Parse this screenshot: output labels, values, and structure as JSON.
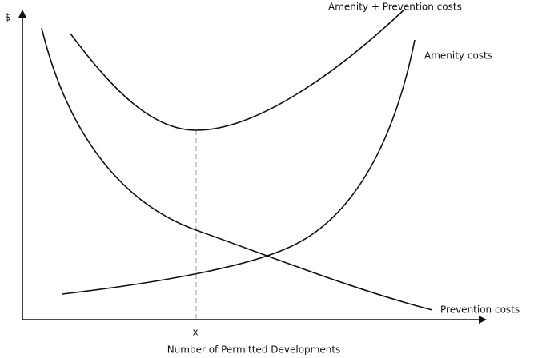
{
  "axes": {
    "y_label": "$",
    "x_label": "Number of Permitted Developments",
    "x_marker": "x"
  },
  "curves": [
    {
      "label": "Amenity + Prevention costs"
    },
    {
      "label": "Amenity costs"
    },
    {
      "label": "Prevention costs"
    }
  ]
}
